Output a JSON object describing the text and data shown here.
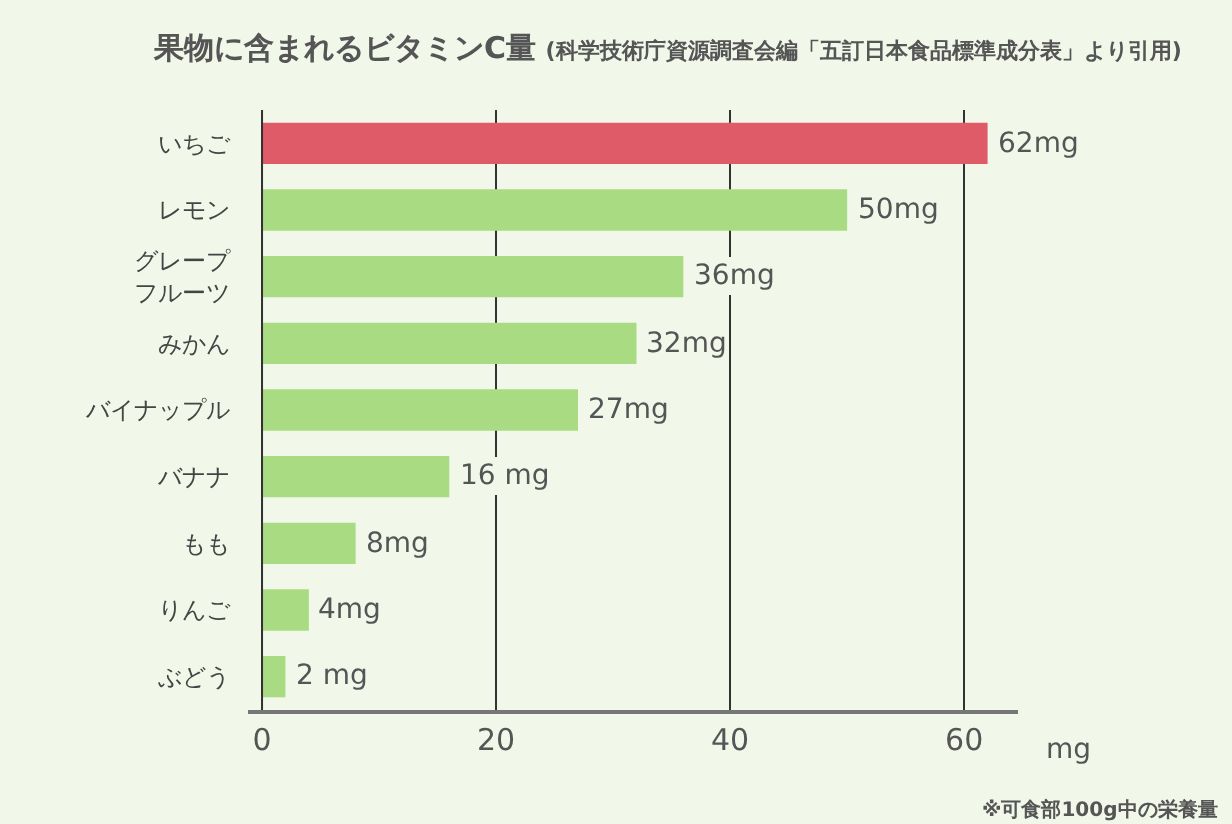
{
  "chart_data": {
    "type": "bar",
    "orientation": "horizontal",
    "title": "果物に含まれるビタミンC量",
    "subtitle": "(科学技術庁資源調査会編「五訂日本食品標準成分表」より引用)",
    "xlabel": "mg",
    "categories": [
      "いちご",
      "レモン",
      "グレープフルーツ",
      "みかん",
      "バイナップル",
      "バナナ",
      "もも",
      "りんご",
      "ぶどう"
    ],
    "values": [
      62,
      50,
      36,
      32,
      27,
      16,
      8,
      4,
      2
    ],
    "colors": [
      "#df5b67",
      "#a9dc82",
      "#a9dc82",
      "#a9dc82",
      "#a9dc82",
      "#a9dc82",
      "#a9dc82",
      "#a9dc82",
      "#a9dc82"
    ],
    "value_labels": [
      "62mg",
      "50mg",
      "36mg",
      "32mg",
      "27mg",
      "16 mg",
      "8mg",
      "4mg",
      "2 mg"
    ],
    "xlim": [
      -1.2,
      64.6
    ],
    "xticks": [
      0,
      20,
      40,
      60
    ],
    "grid": "x",
    "annotations": [
      "※可食部100g中の栄養量"
    ]
  }
}
